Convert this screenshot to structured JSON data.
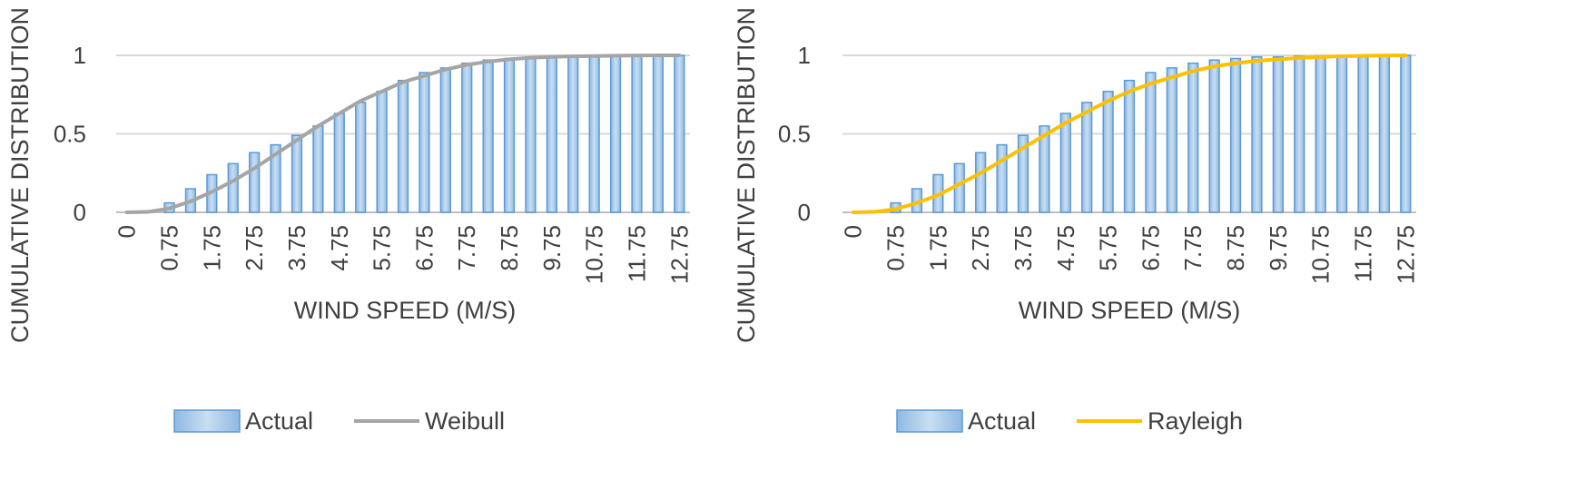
{
  "chart_data": [
    {
      "type": "bar",
      "ylabel": "CUMULATIVE DISTRIBUTION",
      "xlabel": "WIND SPEED (M/S)",
      "ylim": [
        0,
        1
      ],
      "y_ticks": [
        "0",
        "0.5",
        "1"
      ],
      "x_tick_labels": [
        "0",
        "0.75",
        "1.75",
        "2.75",
        "3.75",
        "4.75",
        "5.75",
        "6.75",
        "7.75",
        "8.75",
        "9.75",
        "10.75",
        "11.75",
        "12.75"
      ],
      "grid": true,
      "legend": "bottom",
      "categories": [
        "0",
        "0.25",
        "0.75",
        "1.25",
        "1.75",
        "2.25",
        "2.75",
        "3.25",
        "3.75",
        "4.25",
        "4.75",
        "5.25",
        "5.75",
        "6.25",
        "6.75",
        "7.25",
        "7.75",
        "8.25",
        "8.75",
        "9.25",
        "9.75",
        "10.25",
        "10.75",
        "11.25",
        "11.75",
        "12.25",
        "12.75"
      ],
      "series": [
        {
          "name": "Actual",
          "kind": "bar",
          "color": "#5b9bd5",
          "values": [
            0.0,
            0.01,
            0.06,
            0.15,
            0.24,
            0.31,
            0.38,
            0.43,
            0.49,
            0.55,
            0.63,
            0.7,
            0.77,
            0.84,
            0.89,
            0.92,
            0.95,
            0.97,
            0.98,
            0.99,
            0.99,
            0.995,
            0.997,
            0.998,
            0.999,
            1.0,
            1.0
          ]
        },
        {
          "name": "Weibull",
          "kind": "line",
          "color": "#a5a5a5",
          "values": [
            0.0,
            0.003,
            0.025,
            0.07,
            0.13,
            0.2,
            0.28,
            0.37,
            0.46,
            0.55,
            0.63,
            0.71,
            0.77,
            0.83,
            0.87,
            0.91,
            0.94,
            0.96,
            0.975,
            0.985,
            0.99,
            0.994,
            0.996,
            0.998,
            0.999,
            1.0,
            1.0
          ]
        }
      ]
    },
    {
      "type": "bar",
      "ylabel": "CUMULATIVE DISTRIBUTION",
      "xlabel": "WIND SPEED (M/S)",
      "ylim": [
        0,
        1
      ],
      "y_ticks": [
        "0",
        "0.5",
        "1"
      ],
      "x_tick_labels": [
        "0",
        "0.75",
        "1.75",
        "2.75",
        "3.75",
        "4.75",
        "5.75",
        "6.75",
        "7.75",
        "8.75",
        "9.75",
        "10.75",
        "11.75",
        "12.75"
      ],
      "grid": true,
      "legend": "bottom",
      "categories": [
        "0",
        "0.25",
        "0.75",
        "1.25",
        "1.75",
        "2.25",
        "2.75",
        "3.25",
        "3.75",
        "4.25",
        "4.75",
        "5.25",
        "5.75",
        "6.25",
        "6.75",
        "7.25",
        "7.75",
        "8.25",
        "8.75",
        "9.25",
        "9.75",
        "10.25",
        "10.75",
        "11.25",
        "11.75",
        "12.25",
        "12.75"
      ],
      "series": [
        {
          "name": "Actual",
          "kind": "bar",
          "color": "#5b9bd5",
          "values": [
            0.0,
            0.01,
            0.06,
            0.15,
            0.24,
            0.31,
            0.38,
            0.43,
            0.49,
            0.55,
            0.63,
            0.7,
            0.77,
            0.84,
            0.89,
            0.92,
            0.95,
            0.97,
            0.98,
            0.99,
            0.99,
            0.995,
            0.997,
            0.998,
            0.999,
            1.0,
            1.0
          ]
        },
        {
          "name": "Rayleigh",
          "kind": "line",
          "color": "#ffc000",
          "values": [
            0.0,
            0.003,
            0.02,
            0.06,
            0.11,
            0.18,
            0.25,
            0.33,
            0.41,
            0.49,
            0.57,
            0.64,
            0.71,
            0.77,
            0.82,
            0.86,
            0.9,
            0.93,
            0.95,
            0.965,
            0.975,
            0.984,
            0.99,
            0.994,
            0.997,
            0.999,
            1.0
          ]
        }
      ]
    }
  ]
}
